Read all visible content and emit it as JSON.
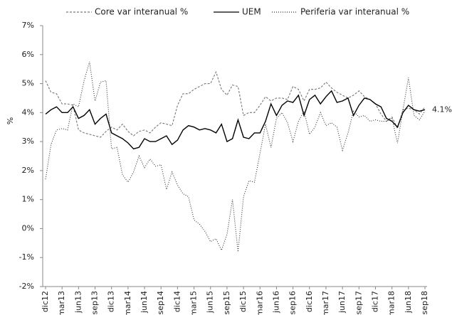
{
  "chart_data": {
    "type": "line",
    "y_label": "%",
    "annotation": "4.1%",
    "categories": [
      "dic12",
      null,
      null,
      "mar13",
      null,
      null,
      "jun13",
      null,
      null,
      "sep13",
      null,
      null,
      "dic13",
      null,
      null,
      "mar14",
      null,
      null,
      "jun14",
      null,
      null,
      "sep14",
      null,
      null,
      "dic14",
      null,
      null,
      "mar15",
      null,
      null,
      "jun15",
      null,
      null,
      "sep15",
      null,
      null,
      "dic15",
      null,
      null,
      "mar16",
      null,
      null,
      "jun16",
      null,
      null,
      "sep16",
      null,
      null,
      "dic16",
      null,
      null,
      "mar17",
      null,
      null,
      "jun17",
      null,
      null,
      "sep17",
      null,
      null,
      "dic17",
      null,
      null,
      "mar18",
      null,
      null,
      "jun18",
      null,
      null,
      "sep18"
    ],
    "series": [
      {
        "name": "Core var interanual %",
        "color": "#777777",
        "dash": "dashed",
        "values": [
          5.1,
          4.7,
          4.65,
          4.3,
          4.3,
          4.25,
          3.4,
          3.3,
          3.25,
          3.2,
          3.15,
          3.35,
          3.5,
          3.4,
          3.6,
          3.35,
          3.2,
          3.35,
          3.4,
          3.3,
          3.5,
          3.65,
          3.6,
          3.55,
          4.25,
          4.65,
          4.65,
          4.8,
          4.9,
          5.0,
          5.0,
          5.4,
          4.8,
          4.6,
          4.95,
          4.9,
          3.9,
          4.0,
          4.0,
          4.25,
          4.55,
          4.4,
          4.5,
          4.5,
          4.45,
          4.9,
          4.8,
          4.4,
          4.8,
          4.8,
          4.85,
          5.05,
          4.85,
          4.7,
          4.6,
          4.5,
          4.6,
          4.75,
          4.55,
          4.45,
          4.3,
          3.95,
          3.7,
          3.85,
          3.45,
          4.1,
          4.15,
          4.1,
          3.95,
          4.2
        ]
      },
      {
        "name": "UEM",
        "color": "#000000",
        "dash": "solid",
        "values": [
          3.95,
          4.1,
          4.2,
          4.0,
          4.0,
          4.2,
          3.8,
          3.9,
          4.1,
          3.6,
          3.8,
          3.95,
          3.3,
          3.2,
          3.1,
          2.95,
          2.75,
          2.8,
          3.1,
          3.0,
          3.0,
          3.1,
          3.2,
          2.9,
          3.05,
          3.4,
          3.55,
          3.5,
          3.4,
          3.45,
          3.4,
          3.3,
          3.6,
          3.0,
          3.1,
          3.75,
          3.15,
          3.1,
          3.3,
          3.3,
          3.7,
          4.3,
          3.9,
          4.25,
          4.4,
          4.35,
          4.6,
          3.9,
          4.45,
          4.6,
          4.3,
          4.55,
          4.75,
          4.35,
          4.4,
          4.5,
          3.9,
          4.25,
          4.5,
          4.45,
          4.3,
          4.2,
          3.8,
          3.7,
          3.5,
          4.0,
          4.25,
          4.1,
          4.05,
          4.1
        ]
      },
      {
        "name": "Periferia var interanual %",
        "color": "#333333",
        "dash": "dotted",
        "values": [
          1.7,
          2.9,
          3.4,
          3.45,
          3.4,
          4.3,
          4.2,
          5.1,
          5.75,
          4.4,
          5.05,
          5.1,
          2.75,
          2.8,
          1.85,
          1.6,
          1.95,
          2.5,
          2.1,
          2.4,
          2.15,
          2.2,
          1.35,
          1.95,
          1.5,
          1.2,
          1.1,
          0.3,
          0.15,
          -0.1,
          -0.45,
          -0.35,
          -0.75,
          -0.2,
          1.0,
          -0.8,
          1.1,
          1.65,
          1.6,
          2.6,
          3.6,
          2.8,
          3.8,
          4.0,
          3.65,
          3.0,
          3.7,
          4.05,
          3.25,
          3.5,
          4.0,
          3.55,
          3.65,
          3.5,
          2.7,
          3.3,
          4.05,
          3.85,
          3.9,
          3.7,
          3.75,
          3.7,
          3.7,
          3.8,
          2.95,
          4.1,
          5.2,
          3.9,
          3.75,
          4.05
        ]
      }
    ],
    "ylim": [
      -2,
      7
    ],
    "yticks": [
      {
        "value": -2,
        "label": "-2%"
      },
      {
        "value": -1,
        "label": "-1%"
      },
      {
        "value": 0,
        "label": "0%"
      },
      {
        "value": 1,
        "label": "1%"
      },
      {
        "value": 2,
        "label": "2%"
      },
      {
        "value": 3,
        "label": "3%"
      },
      {
        "value": 4,
        "label": "4%"
      },
      {
        "value": 5,
        "label": "5%"
      },
      {
        "value": 6,
        "label": "6%"
      },
      {
        "value": 7,
        "label": "7%"
      }
    ],
    "grid": false,
    "legend": "top"
  }
}
